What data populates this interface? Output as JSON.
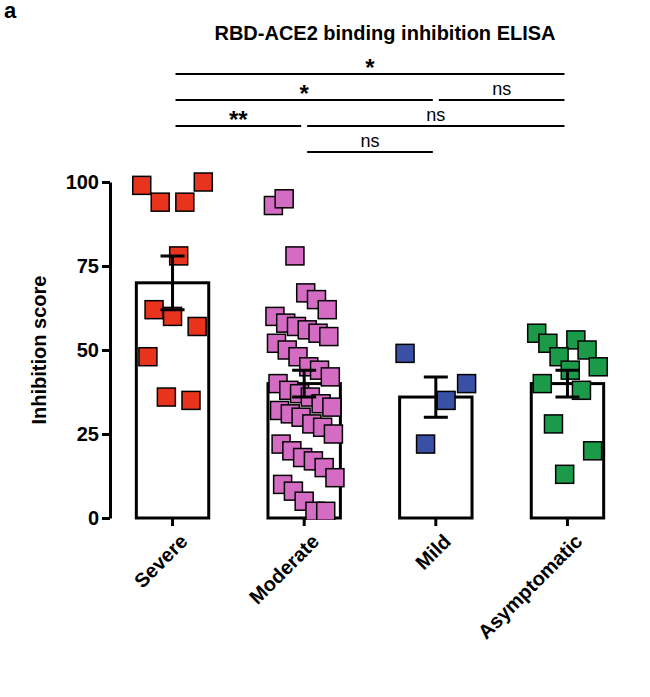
{
  "chart_data": {
    "type": "bar",
    "panel_label": "a",
    "title": "RBD-ACE2 binding inhibition ELISA",
    "ylabel": "Inhibition score",
    "categories": [
      "Severe",
      "Moderate",
      "Mild",
      "Asymptomatic"
    ],
    "values": [
      70,
      40,
      36,
      40
    ],
    "errors": [
      8,
      4,
      6,
      4
    ],
    "colors": [
      "#e8341c",
      "#d46cc4",
      "#3a50a4",
      "#1b9a4a"
    ],
    "points": [
      [
        99,
        94,
        94,
        100,
        78,
        62,
        57,
        60,
        48,
        35,
        36
      ],
      [
        93,
        95,
        78,
        67,
        65,
        62,
        60,
        58,
        57,
        56,
        55,
        54,
        52,
        50,
        48,
        45,
        44,
        42,
        40,
        38,
        37,
        36,
        34,
        33,
        32,
        31,
        30,
        28,
        27,
        25,
        22,
        20,
        18,
        17,
        15,
        12,
        10,
        8,
        5,
        2,
        2
      ],
      [
        49,
        40,
        35,
        22
      ],
      [
        55,
        53,
        52,
        50,
        48,
        45,
        44,
        40,
        38,
        28,
        20,
        13
      ]
    ],
    "comparisons": [
      {
        "from": "Severe",
        "to": "Asymptomatic",
        "label": "*"
      },
      {
        "from": "Severe",
        "to": "Mild",
        "label": "*"
      },
      {
        "from": "Mild",
        "to": "Asymptomatic",
        "label": "ns"
      },
      {
        "from": "Severe",
        "to": "Moderate",
        "label": "**"
      },
      {
        "from": "Moderate",
        "to": "Asymptomatic",
        "label": "ns"
      },
      {
        "from": "Moderate",
        "to": "Mild",
        "label": "ns"
      }
    ],
    "ylim": [
      0,
      100
    ],
    "yticks": [
      0,
      25,
      50,
      75,
      100
    ]
  }
}
